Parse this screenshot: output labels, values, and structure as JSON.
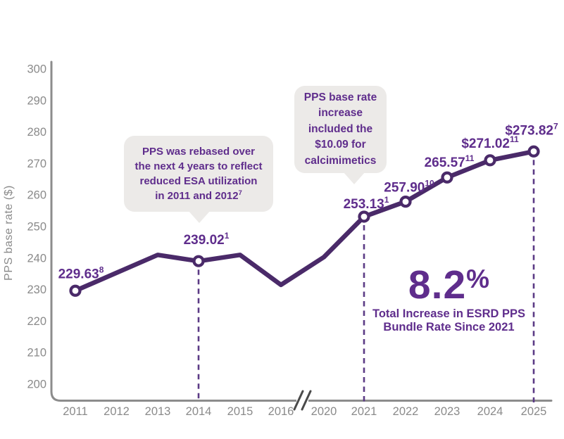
{
  "colors": {
    "line": "#4A2A69",
    "accent_purple": "#5F2D8C",
    "dashed_line": "#5B3A85",
    "axis_gray": "#8C8C8C",
    "tick_label_gray": "#8A8A8A",
    "break_mark": "#4A4A4A",
    "callout_bg": "#ECEAE8",
    "marker_fill": "#FFFFFF",
    "background": "#FFFFFF"
  },
  "chart_data": {
    "type": "line",
    "ylabel": "PPS base rate ($)",
    "ylim": [
      200,
      300
    ],
    "yticks": [
      200,
      210,
      220,
      230,
      240,
      250,
      260,
      270,
      280,
      290,
      300
    ],
    "x_labels": [
      "2011",
      "2012",
      "2013",
      "2014",
      "2015",
      "2016",
      "2020",
      "2021",
      "2022",
      "2023",
      "2024",
      "2025"
    ],
    "axis_break_between": [
      "2016",
      "2020"
    ],
    "grid": false,
    "legend": false,
    "series": [
      {
        "name": "PPS base rate",
        "x": [
          "2011",
          "2012",
          "2013",
          "2014",
          "2015",
          "2016",
          "2020",
          "2021",
          "2022",
          "2023",
          "2024",
          "2025"
        ],
        "values": [
          229.63,
          235.32,
          241.0,
          239.02,
          241.0,
          231.5,
          240.3,
          253.13,
          257.9,
          265.57,
          271.02,
          273.82
        ]
      }
    ],
    "estimated_unlabeled_years": [
      "2012",
      "2013",
      "2015",
      "2016",
      "2020"
    ],
    "point_labels": [
      {
        "year": "2011",
        "text": "229.63",
        "sup": "8",
        "marker": true,
        "dashed": false
      },
      {
        "year": "2014",
        "text": "239.02",
        "sup": "1",
        "marker": true,
        "dashed": true
      },
      {
        "year": "2021",
        "text": "253.13",
        "sup": "1",
        "marker": true,
        "dashed": true
      },
      {
        "year": "2022",
        "text": "257.90",
        "sup": "10",
        "marker": true,
        "dashed": false
      },
      {
        "year": "2023",
        "text": "265.57",
        "sup": "11",
        "marker": true,
        "dashed": false
      },
      {
        "year": "2024",
        "text": "$271.02",
        "sup": "11",
        "marker": true,
        "dashed": false
      },
      {
        "year": "2025",
        "text": "$273.82",
        "sup": "7",
        "marker": true,
        "dashed": true
      }
    ]
  },
  "callouts": {
    "rebase": {
      "text": "PPS was rebased over\nthe next 4 years to reflect\nreduced ESA utilization\nin 2011 and 2012",
      "sup": "7"
    },
    "calcimimetics": {
      "text": "PPS base rate\nincrease\nincluded the\n$10.09 for\ncalcimimetics"
    }
  },
  "stat": {
    "number": "8.2",
    "percent": "%",
    "caption": "Total Increase in ESRD PPS\nBundle Rate Since 2021"
  }
}
